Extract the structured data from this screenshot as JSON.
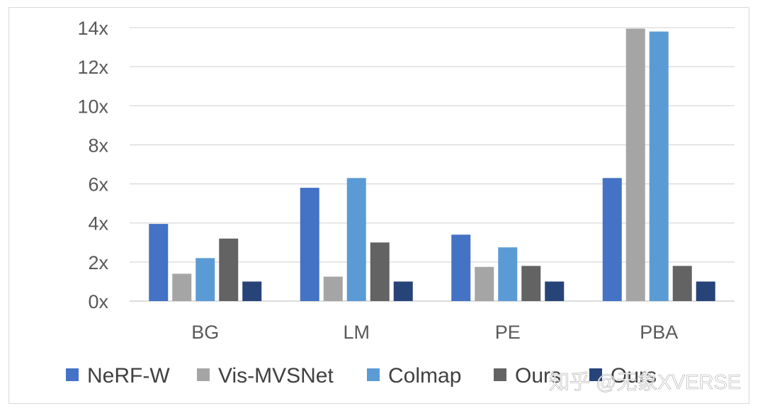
{
  "chart_data": {
    "type": "bar",
    "categories": [
      "BG",
      "LM",
      "PE",
      "PBA"
    ],
    "series": [
      {
        "name": "NeRF-W",
        "color": "#4472c4",
        "values": [
          3.95,
          5.8,
          3.4,
          6.3
        ]
      },
      {
        "name": "Vis-MVSNet",
        "color": "#a5a5a5",
        "values": [
          1.4,
          1.25,
          1.75,
          13.95
        ]
      },
      {
        "name": "Colmap",
        "color": "#5b9bd5",
        "values": [
          2.2,
          6.3,
          2.75,
          13.8
        ]
      },
      {
        "name": "Ours",
        "color": "#636363",
        "values": [
          3.2,
          3.0,
          1.8,
          1.8
        ]
      },
      {
        "name": "Ours",
        "color": "#264478",
        "values": [
          1.0,
          1.0,
          1.0,
          1.0
        ]
      }
    ],
    "yticks": [
      "0x",
      "2x",
      "4x",
      "6x",
      "8x",
      "10x",
      "12x",
      "14x"
    ],
    "ylim": [
      0,
      14
    ],
    "grid": true,
    "legend_position": "bottom"
  },
  "watermark": "知乎 @无象XVERSE"
}
